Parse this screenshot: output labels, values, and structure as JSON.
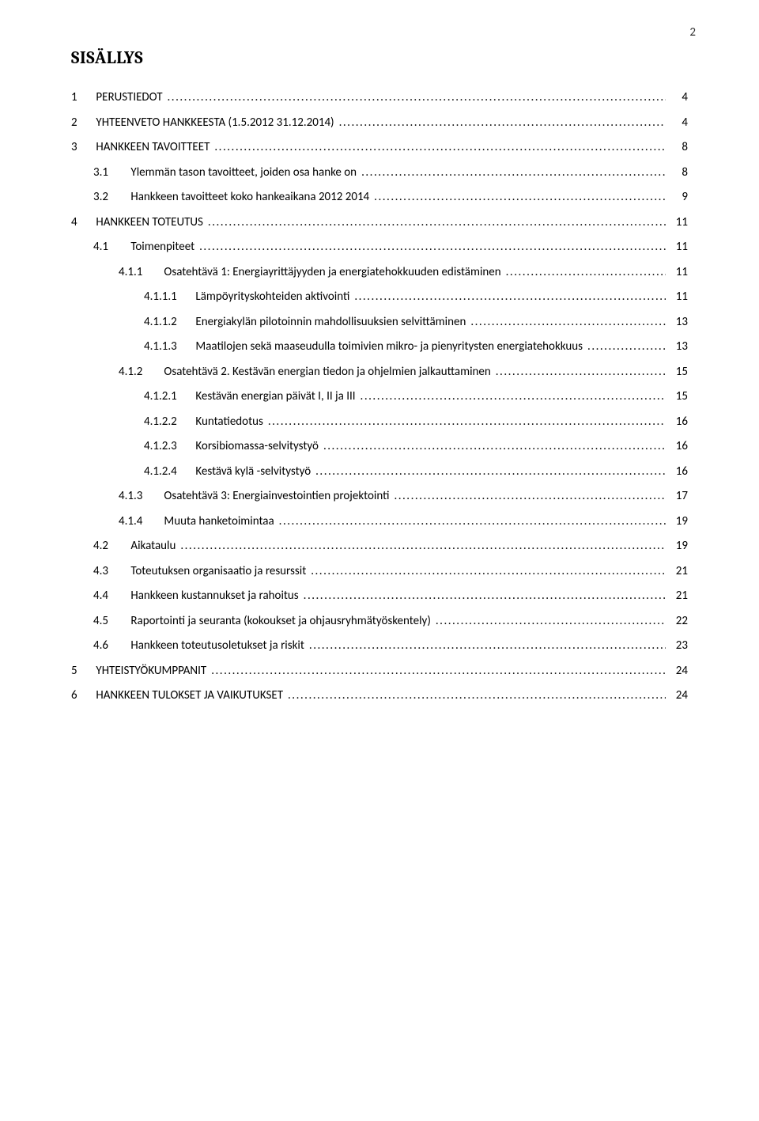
{
  "page_number": "2",
  "doc_title": "SISÄLLYS",
  "colors": {
    "background": "#ffffff",
    "text": "#000000"
  },
  "typography": {
    "body_font": "Calibri",
    "title_font": "Cambria",
    "title_fontsize_pt": 16,
    "body_fontsize_pt": 11
  },
  "toc": [
    {
      "level": 1,
      "num": "1",
      "title": "PERUSTIEDOT",
      "page": "4"
    },
    {
      "level": 1,
      "num": "2",
      "title": "YHTEENVETO HANKKEESTA (1.5.2012 31.12.2014)",
      "page": "4"
    },
    {
      "level": 1,
      "num": "3",
      "title": "HANKKEEN TAVOITTEET",
      "page": "8"
    },
    {
      "level": 2,
      "num": "3.1",
      "title": "Ylemmän tason tavoitteet, joiden osa hanke on",
      "page": "8"
    },
    {
      "level": 2,
      "num": "3.2",
      "title": "Hankkeen tavoitteet koko hankeaikana 2012 2014",
      "page": "9"
    },
    {
      "level": 1,
      "num": "4",
      "title": "HANKKEEN TOTEUTUS",
      "page": "11"
    },
    {
      "level": 2,
      "num": "4.1",
      "title": "Toimenpiteet",
      "page": "11"
    },
    {
      "level": 3,
      "num": "4.1.1",
      "title": "Osatehtävä 1: Energiayrittäjyyden ja energiatehokkuuden edistäminen",
      "page": "11"
    },
    {
      "level": 4,
      "num": "4.1.1.1",
      "title": "Lämpöyrityskohteiden aktivointi",
      "page": "11"
    },
    {
      "level": 4,
      "num": "4.1.1.2",
      "title": "Energiakylän pilotoinnin mahdollisuuksien selvittäminen",
      "page": "13"
    },
    {
      "level": 4,
      "num": "4.1.1.3",
      "title": "Maatilojen sekä maaseudulla toimivien mikro- ja pienyritysten energiatehokkuus",
      "page": "13"
    },
    {
      "level": 3,
      "num": "4.1.2",
      "title": "Osatehtävä 2. Kestävän energian tiedon ja ohjelmien jalkauttaminen",
      "page": "15"
    },
    {
      "level": 4,
      "num": "4.1.2.1",
      "title": "Kestävän energian päivät I, II ja III",
      "page": "15"
    },
    {
      "level": 4,
      "num": "4.1.2.2",
      "title": "Kuntatiedotus",
      "page": "16"
    },
    {
      "level": 4,
      "num": "4.1.2.3",
      "title": "Korsibiomassa-selvitystyö",
      "page": "16"
    },
    {
      "level": 4,
      "num": "4.1.2.4",
      "title": "Kestävä kylä -selvitystyö",
      "page": "16"
    },
    {
      "level": 3,
      "num": "4.1.3",
      "title": "Osatehtävä 3: Energiainvestointien projektointi",
      "page": "17"
    },
    {
      "level": 3,
      "num": "4.1.4",
      "title": "Muuta hanketoimintaa",
      "page": "19"
    },
    {
      "level": 2,
      "num": "4.2",
      "title": "Aikataulu",
      "page": "19"
    },
    {
      "level": 2,
      "num": "4.3",
      "title": "Toteutuksen organisaatio ja resurssit",
      "page": "21"
    },
    {
      "level": 2,
      "num": "4.4",
      "title": "Hankkeen kustannukset ja rahoitus",
      "page": "21"
    },
    {
      "level": 2,
      "num": "4.5",
      "title": "Raportointi ja seuranta (kokoukset ja ohjausryhmätyöskentely)",
      "page": "22"
    },
    {
      "level": 2,
      "num": "4.6",
      "title": "Hankkeen toteutusoletukset ja riskit",
      "page": "23"
    },
    {
      "level": 1,
      "num": "5",
      "title": "YHTEISTYÖKUMPPANIT",
      "page": "24"
    },
    {
      "level": 1,
      "num": "6",
      "title": "HANKKEEN TULOKSET JA VAIKUTUKSET",
      "page": "24"
    }
  ]
}
